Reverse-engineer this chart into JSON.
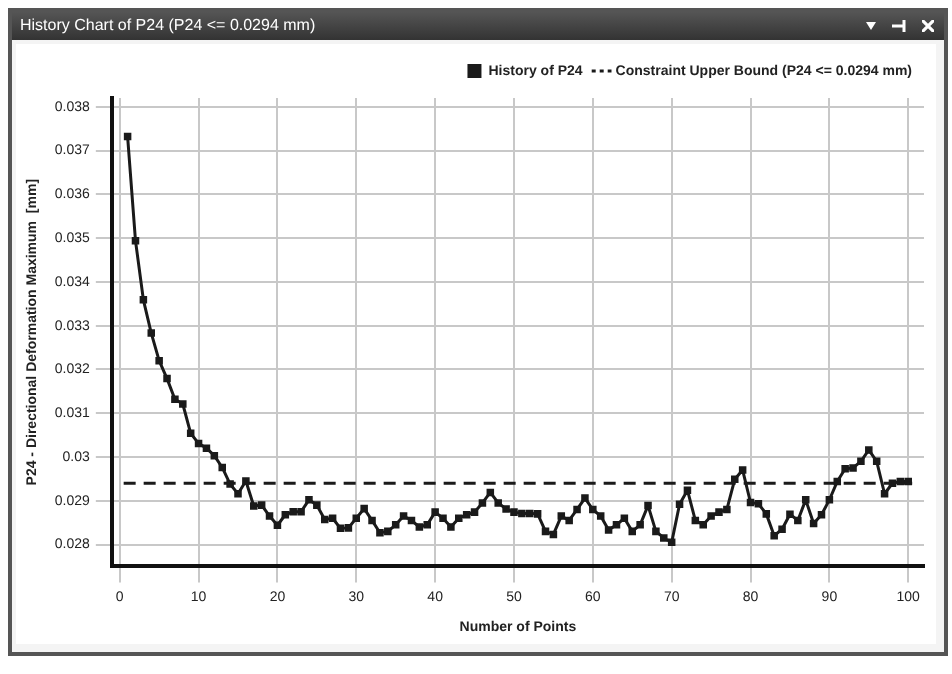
{
  "chart_data": {
    "type": "line",
    "title": "History Chart of P24 (P24 <= 0.0294 mm)",
    "xlabel": "Number of Points",
    "ylabel": "P24 - Directional Deformation Maximum  [mm]",
    "x": [
      1,
      2,
      3,
      4,
      5,
      6,
      7,
      8,
      9,
      10,
      11,
      12,
      13,
      14,
      15,
      16,
      17,
      18,
      19,
      20,
      21,
      22,
      23,
      24,
      25,
      26,
      27,
      28,
      29,
      30,
      31,
      32,
      33,
      34,
      35,
      36,
      37,
      38,
      39,
      40,
      41,
      42,
      43,
      44,
      45,
      46,
      47,
      48,
      49,
      50,
      51,
      52,
      53,
      54,
      55,
      56,
      57,
      58,
      59,
      60,
      61,
      62,
      63,
      64,
      65,
      66,
      67,
      68,
      69,
      70,
      71,
      72,
      73,
      74,
      75,
      76,
      77,
      78,
      79,
      80,
      81,
      82,
      83,
      84,
      85,
      86,
      87,
      88,
      89,
      90,
      91,
      92,
      93,
      94,
      95,
      96,
      97,
      98,
      99,
      100
    ],
    "series": [
      {
        "name": "History of P24",
        "color": "#1a1a1a",
        "values": [
          0.03732,
          0.03494,
          0.03359,
          0.03283,
          0.0322,
          0.03179,
          0.03132,
          0.03121,
          0.03054,
          0.03031,
          0.0302,
          0.03003,
          0.02976,
          0.02938,
          0.02916,
          0.02945,
          0.02888,
          0.0289,
          0.02865,
          0.02844,
          0.02868,
          0.02875,
          0.02875,
          0.02902,
          0.0289,
          0.02857,
          0.0286,
          0.02837,
          0.02838,
          0.0286,
          0.02882,
          0.02855,
          0.02827,
          0.0283,
          0.02845,
          0.02865,
          0.02855,
          0.0284,
          0.02845,
          0.02874,
          0.0286,
          0.0284,
          0.0286,
          0.02868,
          0.02874,
          0.02895,
          0.02919,
          0.02895,
          0.02881,
          0.02874,
          0.02871,
          0.02871,
          0.0287,
          0.0283,
          0.02823,
          0.02865,
          0.02855,
          0.0288,
          0.02906,
          0.0288,
          0.02865,
          0.02833,
          0.02845,
          0.0286,
          0.0283,
          0.02845,
          0.02889,
          0.0283,
          0.02815,
          0.02805,
          0.02892,
          0.02924,
          0.02855,
          0.02845,
          0.02865,
          0.02874,
          0.0288,
          0.02949,
          0.0297,
          0.02896,
          0.02893,
          0.0287,
          0.0282,
          0.02835,
          0.02869,
          0.02855,
          0.02902,
          0.02848,
          0.02868,
          0.02902,
          0.02944,
          0.02973,
          0.02975,
          0.0299,
          0.03016,
          0.0299,
          0.02916,
          0.0294,
          0.02944,
          0.02944
        ]
      }
    ],
    "ref_lines": [
      {
        "axis": "y",
        "value": 0.0294,
        "label": "Constraint Upper Bound (P24 <= 0.0294 mm)",
        "color": "#1a1a1a",
        "line_style": "dashed"
      }
    ],
    "xlim": [
      -1,
      102
    ],
    "xticks": [
      0,
      10,
      20,
      30,
      40,
      50,
      60,
      70,
      80,
      90,
      100
    ],
    "ylim": [
      0.0275,
      0.0382
    ],
    "yticks": [
      0.028,
      0.029,
      {
        "value": 0.03,
        "label": "0.03"
      },
      0.031,
      0.032,
      0.033,
      0.034,
      0.035,
      0.036,
      0.037,
      0.038
    ],
    "grid": true,
    "legend": "top right",
    "marker": "square",
    "line_style": "solid"
  }
}
